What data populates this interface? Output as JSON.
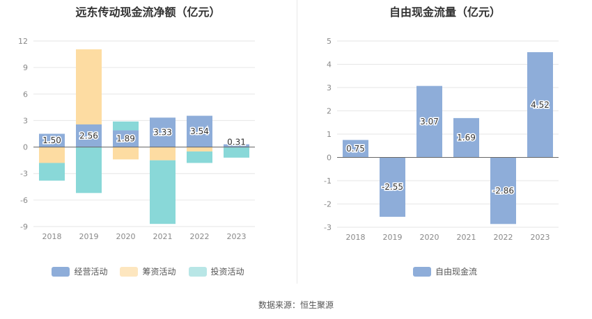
{
  "colors": {
    "operating": "#8eadd9",
    "financing": "#fddca2",
    "investing": "#89d8d8",
    "free_cash_flow": "#8eadd9"
  },
  "footer": {
    "source_text": "数据来源：恒生聚源"
  },
  "chart_data": [
    {
      "type": "bar",
      "title": "远东传动现金流净额（亿元）",
      "categories": [
        "2018",
        "2019",
        "2020",
        "2021",
        "2022",
        "2023"
      ],
      "series": [
        {
          "name": "经营活动",
          "values": [
            1.5,
            2.56,
            1.89,
            3.33,
            3.54,
            0.31
          ]
        },
        {
          "name": "筹资活动",
          "values": [
            -1.8,
            8.5,
            -1.4,
            -1.5,
            -0.5,
            0.0
          ]
        },
        {
          "name": "投资活动",
          "values": [
            -2.0,
            -5.2,
            1.0,
            -7.2,
            -1.3,
            -1.2
          ]
        }
      ],
      "data_labels": [
        "1.50",
        "2.56",
        "1.89",
        "3.33",
        "3.54",
        "0.31"
      ],
      "yticks": [
        "12",
        "9",
        "6",
        "3",
        "0",
        "-3",
        "-6",
        "-9"
      ],
      "ylim": [
        -9,
        12
      ],
      "grid": true,
      "legend_position": "bottom"
    },
    {
      "type": "bar",
      "title": "自由现金流量（亿元）",
      "categories": [
        "2018",
        "2019",
        "2020",
        "2021",
        "2022",
        "2023"
      ],
      "series": [
        {
          "name": "自由现金流",
          "values": [
            0.75,
            -2.55,
            3.07,
            1.69,
            -2.86,
            4.52
          ]
        }
      ],
      "data_labels": [
        "0.75",
        "-2.55",
        "3.07",
        "1.69",
        "-2.86",
        "4.52"
      ],
      "yticks": [
        "5",
        "4",
        "3",
        "2",
        "1",
        "0",
        "-1",
        "-2",
        "-3"
      ],
      "ylim": [
        -3,
        5
      ],
      "grid": true,
      "legend_position": "bottom"
    }
  ]
}
